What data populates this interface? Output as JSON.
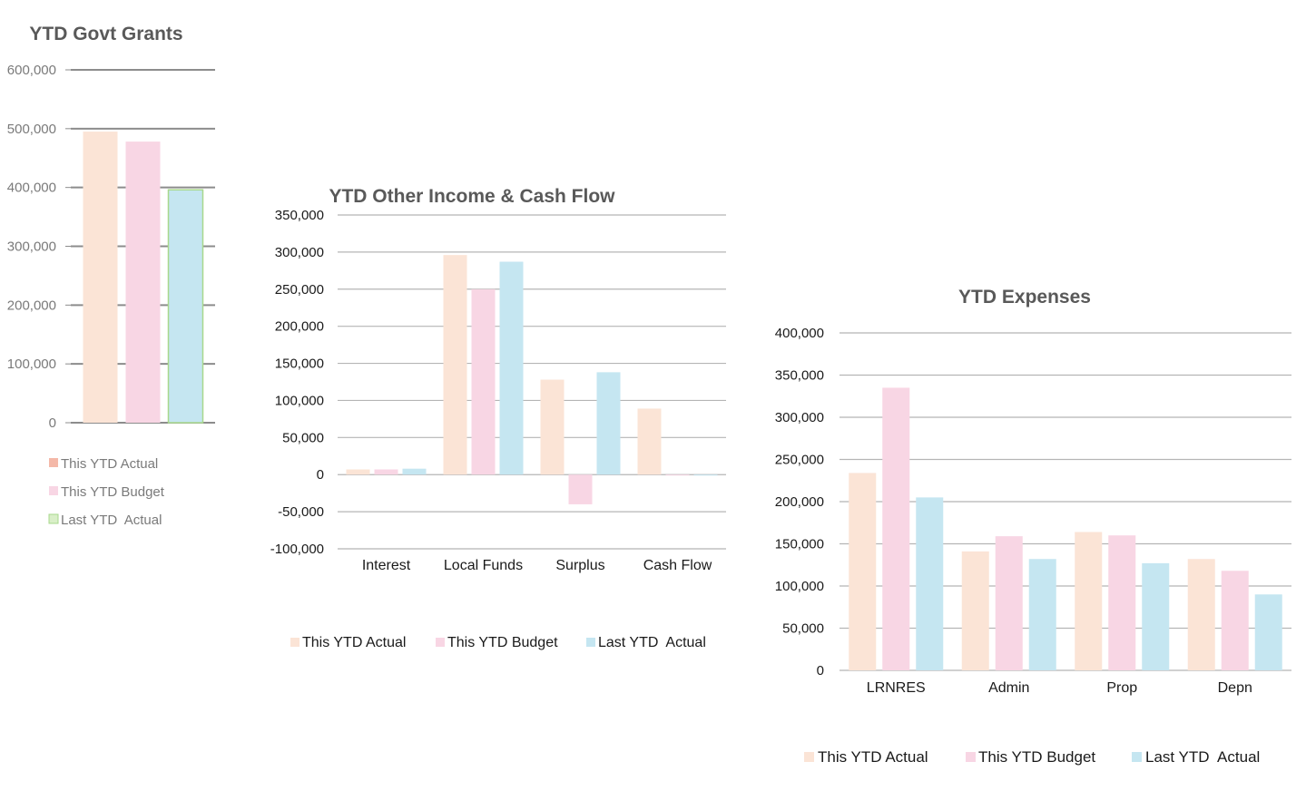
{
  "colors": {
    "actual": "#fbe4d6",
    "budget": "#f8d6e4",
    "last": "#c5e6f1",
    "grants_legend_actual": "#f4b8a8",
    "grants_legend_last_border": "#a8d88c",
    "grid": "#b5b5b5",
    "grants_grid": "#8c8c8c",
    "title": "#595959",
    "grants_tick": "#7a7a7a",
    "tick": "#1a1a1a"
  },
  "chart_data": [
    {
      "id": "grants",
      "type": "bar",
      "title": "YTD Govt Grants",
      "categories": [
        ""
      ],
      "series": [
        {
          "name": "This YTD Actual",
          "values": [
            495000
          ]
        },
        {
          "name": "This YTD Budget",
          "values": [
            478000
          ]
        },
        {
          "name": "Last YTD  Actual",
          "values": [
            396000
          ]
        }
      ],
      "ylim": [
        0,
        600000
      ],
      "yticks": [
        0,
        100000,
        200000,
        300000,
        400000,
        500000,
        600000
      ],
      "ytick_labels": [
        "0",
        "100,000",
        "200,000",
        "300,000",
        "400,000",
        "500,000",
        "600,000"
      ],
      "grid": true,
      "legend": "bottom"
    },
    {
      "id": "other",
      "type": "bar",
      "title": "YTD Other Income & Cash Flow",
      "categories": [
        "Interest",
        "Local Funds",
        "Surplus",
        "Cash Flow"
      ],
      "series": [
        {
          "name": "This YTD Actual",
          "values": [
            7000,
            296000,
            128000,
            89000
          ]
        },
        {
          "name": "This YTD Budget",
          "values": [
            7000,
            250000,
            -40000,
            -1000
          ]
        },
        {
          "name": "Last YTD  Actual",
          "values": [
            8000,
            287000,
            138000,
            0
          ]
        }
      ],
      "ylim": [
        -100000,
        350000
      ],
      "yticks": [
        -100000,
        -50000,
        0,
        50000,
        100000,
        150000,
        200000,
        250000,
        300000,
        350000
      ],
      "ytick_labels": [
        "-100,000",
        "-50,000",
        "0",
        "50,000",
        "100,000",
        "150,000",
        "200,000",
        "250,000",
        "300,000",
        "350,000"
      ],
      "grid": true,
      "legend": "bottom"
    },
    {
      "id": "expenses",
      "type": "bar",
      "title": "YTD Expenses",
      "categories": [
        "LRNRES",
        "Admin",
        "Prop",
        "Depn"
      ],
      "series": [
        {
          "name": "This YTD Actual",
          "values": [
            234000,
            141000,
            164000,
            132000
          ]
        },
        {
          "name": "This YTD Budget",
          "values": [
            335000,
            159000,
            160000,
            118000
          ]
        },
        {
          "name": "Last YTD  Actual",
          "values": [
            205000,
            132000,
            127000,
            90000
          ]
        }
      ],
      "ylim": [
        0,
        400000
      ],
      "yticks": [
        0,
        50000,
        100000,
        150000,
        200000,
        250000,
        300000,
        350000,
        400000
      ],
      "ytick_labels": [
        "0",
        "50,000",
        "100,000",
        "150,000",
        "200,000",
        "250,000",
        "300,000",
        "350,000",
        "400,000"
      ],
      "grid": true,
      "legend": "bottom"
    }
  ]
}
